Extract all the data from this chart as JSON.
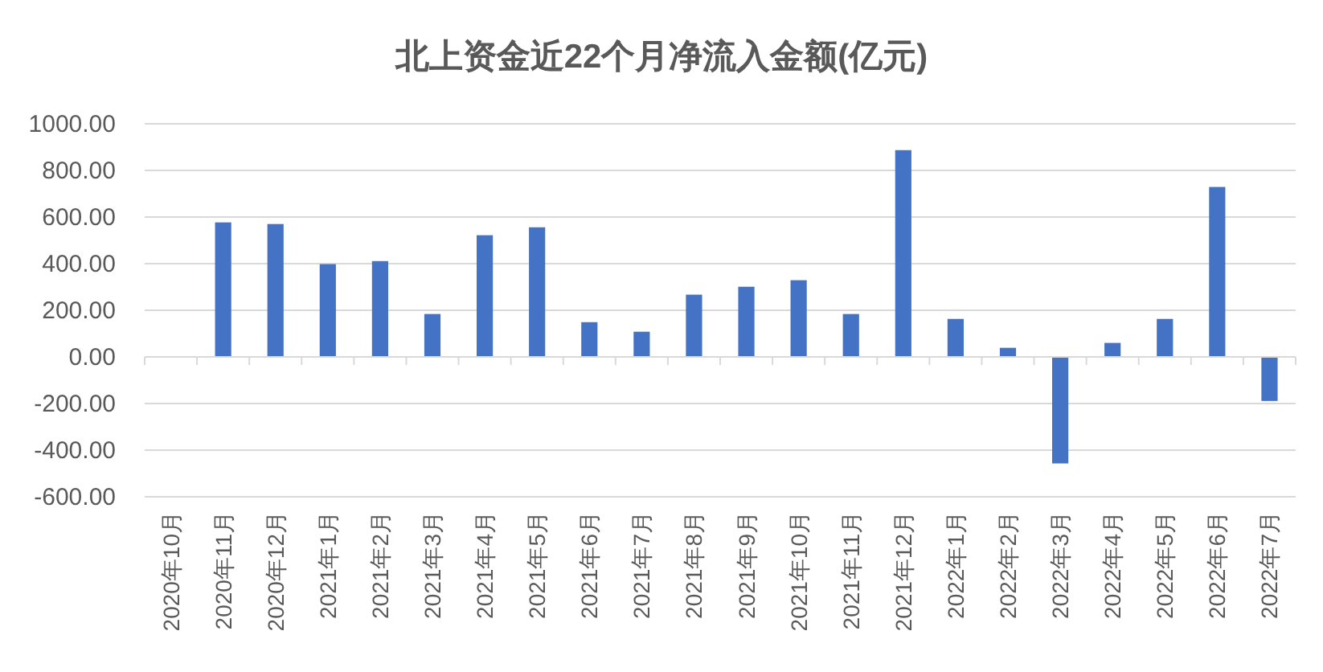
{
  "chart_data": {
    "type": "bar",
    "title": "北上资金近22个月净流入金额(亿元)",
    "categories": [
      "2020年10月",
      "2020年11月",
      "2020年12月",
      "2021年1月",
      "2021年2月",
      "2021年3月",
      "2021年4月",
      "2021年5月",
      "2021年6月",
      "2021年7月",
      "2021年8月",
      "2021年9月",
      "2021年10月",
      "2021年11月",
      "2021年12月",
      "2022年1月",
      "2022年2月",
      "2022年3月",
      "2022年4月",
      "2022年5月",
      "2022年6月",
      "2022年7月"
    ],
    "values": [
      null,
      577,
      570,
      398,
      411,
      184,
      522,
      556,
      149,
      108,
      267,
      301,
      329,
      184,
      887,
      163,
      39,
      -457,
      60,
      163,
      729,
      -189
    ],
    "color": "#4472c4",
    "ylim": [
      -600,
      1000
    ],
    "yticks": [
      {
        "value": -600,
        "label": "-600.00"
      },
      {
        "value": -400,
        "label": "-400.00"
      },
      {
        "value": -200,
        "label": "-200.00"
      },
      {
        "value": 0,
        "label": "0.00"
      },
      {
        "value": 200,
        "label": "200.00"
      },
      {
        "value": 400,
        "label": "400.00"
      },
      {
        "value": 600,
        "label": "600.00"
      },
      {
        "value": 800,
        "label": "800.00"
      },
      {
        "value": 1000,
        "label": "1000.00"
      }
    ],
    "grid": "y"
  }
}
